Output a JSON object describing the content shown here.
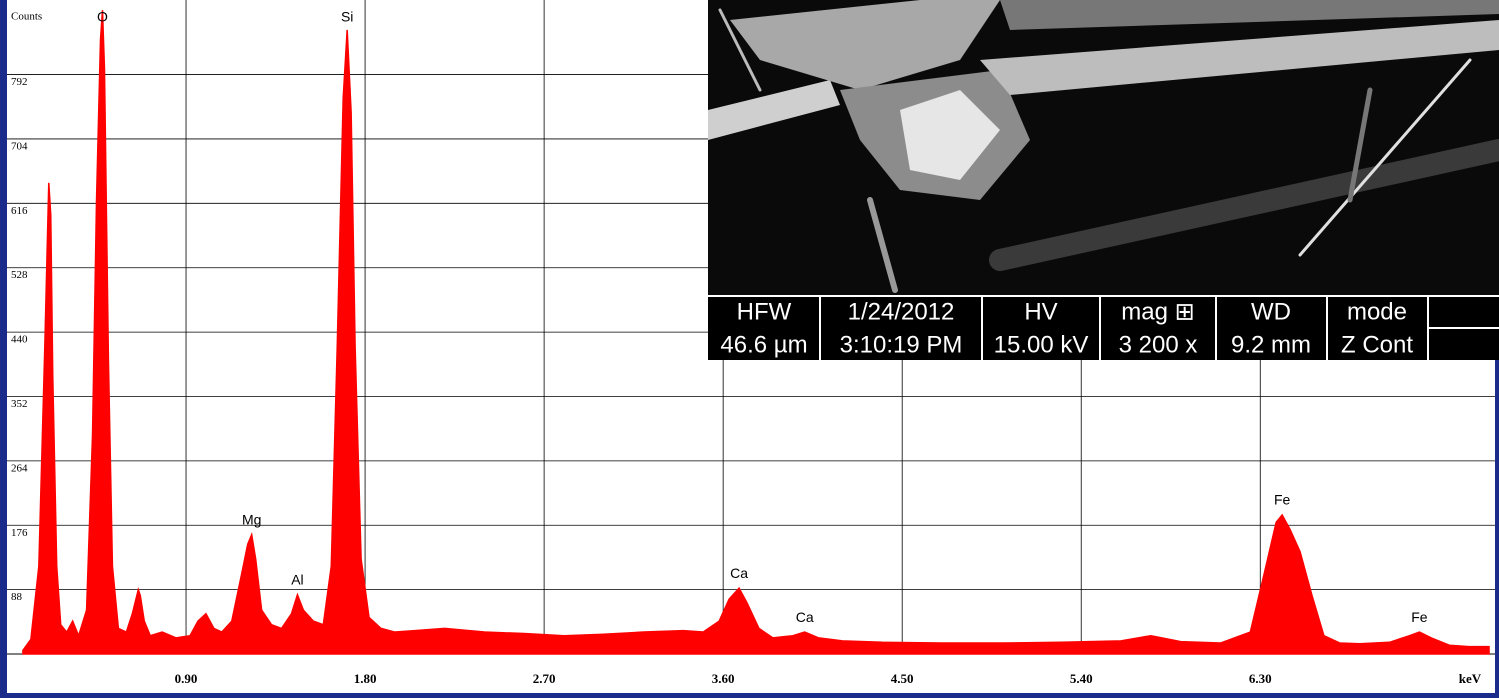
{
  "chart_data": {
    "type": "area",
    "y_label": "Counts",
    "x_label": "keV",
    "color": "#ff0000",
    "grid": true,
    "xlim": [
      0,
      7.48
    ],
    "ylim": [
      0,
      883
    ],
    "xticks": [
      {
        "value": 0.9,
        "label": "0.90"
      },
      {
        "value": 1.8,
        "label": "1.80"
      },
      {
        "value": 2.7,
        "label": "2.70"
      },
      {
        "value": 3.6,
        "label": "3.60"
      },
      {
        "value": 4.5,
        "label": "4.50"
      },
      {
        "value": 5.4,
        "label": "5.40"
      },
      {
        "value": 6.3,
        "label": "6.30"
      }
    ],
    "yticks": [
      88,
      176,
      264,
      352,
      440,
      528,
      616,
      704,
      792
    ],
    "x": [
      0.08,
      0.12,
      0.16,
      0.19,
      0.21,
      0.22,
      0.23,
      0.25,
      0.27,
      0.3,
      0.33,
      0.36,
      0.4,
      0.43,
      0.45,
      0.47,
      0.48,
      0.49,
      0.51,
      0.53,
      0.56,
      0.6,
      0.63,
      0.66,
      0.67,
      0.69,
      0.72,
      0.78,
      0.85,
      0.92,
      0.96,
      1.0,
      1.04,
      1.08,
      1.13,
      1.18,
      1.21,
      1.23,
      1.25,
      1.28,
      1.33,
      1.38,
      1.43,
      1.46,
      1.49,
      1.54,
      1.59,
      1.63,
      1.66,
      1.69,
      1.71,
      1.73,
      1.75,
      1.78,
      1.82,
      1.88,
      1.95,
      2.05,
      2.2,
      2.4,
      2.6,
      2.8,
      3.0,
      3.2,
      3.4,
      3.5,
      3.58,
      3.63,
      3.68,
      3.72,
      3.78,
      3.85,
      3.95,
      4.01,
      4.08,
      4.2,
      4.4,
      4.7,
      5.0,
      5.3,
      5.6,
      5.75,
      5.9,
      6.1,
      6.25,
      6.32,
      6.38,
      6.41,
      6.45,
      6.5,
      6.56,
      6.62,
      6.7,
      6.8,
      6.95,
      7.05,
      7.1,
      7.16,
      7.25,
      7.35,
      7.45
    ],
    "values": [
      5,
      20,
      120,
      420,
      644,
      600,
      380,
      120,
      40,
      30,
      45,
      25,
      60,
      300,
      620,
      840,
      880,
      800,
      400,
      120,
      35,
      30,
      55,
      88,
      80,
      45,
      25,
      30,
      22,
      25,
      45,
      55,
      35,
      30,
      45,
      110,
      150,
      163,
      130,
      60,
      40,
      35,
      55,
      81,
      60,
      45,
      40,
      120,
      420,
      760,
      853,
      740,
      420,
      130,
      50,
      35,
      30,
      32,
      35,
      30,
      28,
      25,
      27,
      30,
      32,
      30,
      45,
      75,
      90,
      70,
      35,
      22,
      25,
      30,
      22,
      18,
      16,
      15,
      15,
      16,
      18,
      25,
      17,
      15,
      30,
      110,
      180,
      190,
      170,
      140,
      80,
      25,
      15,
      14,
      16,
      25,
      30,
      22,
      12,
      10,
      10
    ],
    "annotations": [
      {
        "text": "O",
        "x": 0.48,
        "y": 880
      },
      {
        "text": "Si",
        "x": 1.71,
        "y": 853
      },
      {
        "text": "Mg",
        "x": 1.23,
        "y": 163
      },
      {
        "text": "Al",
        "x": 1.46,
        "y": 81
      },
      {
        "text": "Ca",
        "x": 3.68,
        "y": 90
      },
      {
        "text": "Ca",
        "x": 4.01,
        "y": 30
      },
      {
        "text": "Fe",
        "x": 6.41,
        "y": 190
      },
      {
        "text": "Fe",
        "x": 7.1,
        "y": 30
      }
    ]
  },
  "sem_info": {
    "headers": [
      "HFW",
      "1/24/2012",
      "HV",
      "mag ⊞",
      "WD",
      "mode"
    ],
    "values": [
      "46.6 µm",
      "3:10:19 PM",
      "15.00 kV",
      "3 200 x",
      "9.2 mm",
      "Z Cont"
    ]
  }
}
